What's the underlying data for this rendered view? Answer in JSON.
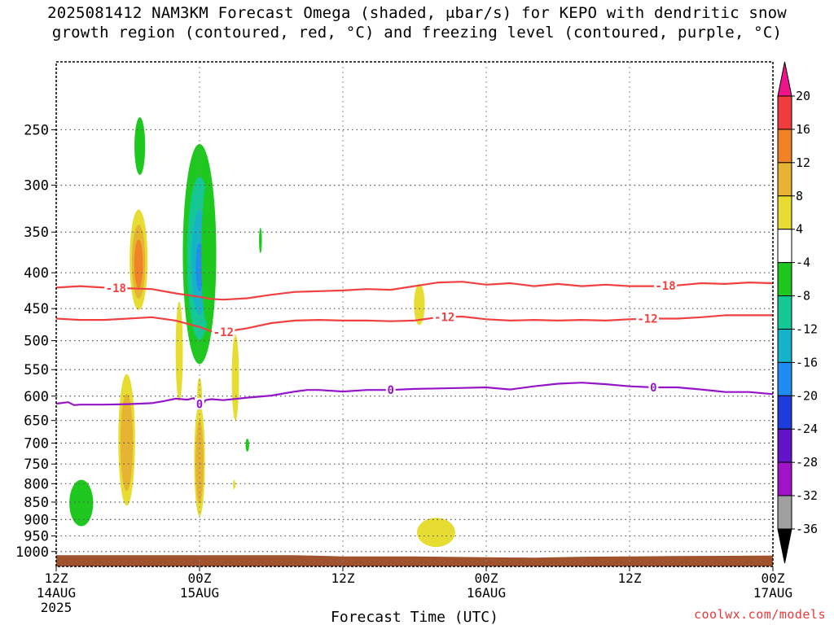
{
  "chart_data": {
    "type": "heatmap",
    "title_line1": "2025081412 NAM3KM Forecast Omega (shaded, μbar/s) for KEPO with dendritic snow",
    "title_line2": "growth region (contoured, red, °C) and freezing level (contoured, purple, °C)",
    "xlabel": "Forecast Time (UTC)",
    "x_unit": "hours",
    "xlim": [
      0,
      60
    ],
    "x_ticks": [
      {
        "x": 0,
        "label": "12Z",
        "sub": "14AUG",
        "sub2": "2025"
      },
      {
        "x": 12,
        "label": "00Z",
        "sub": "15AUG",
        "sub2": ""
      },
      {
        "x": 24,
        "label": "12Z",
        "sub": "",
        "sub2": ""
      },
      {
        "x": 36,
        "label": "00Z",
        "sub": "16AUG",
        "sub2": ""
      },
      {
        "x": 48,
        "label": "12Z",
        "sub": "",
        "sub2": ""
      },
      {
        "x": 60,
        "label": "00Z",
        "sub": "17AUG",
        "sub2": ""
      }
    ],
    "y_axis": "pressure (hPa), log scale, inverted",
    "ylim": [
      1050,
      200
    ],
    "y_ticks": [
      250,
      300,
      350,
      400,
      450,
      500,
      550,
      600,
      650,
      700,
      750,
      800,
      850,
      900,
      950,
      1000
    ],
    "grid": true,
    "colorbar": {
      "tick_labels": [
        "20",
        "16",
        "12",
        "8",
        "4",
        "-4",
        "-8",
        "-12",
        "-16",
        "-20",
        "-24",
        "-28",
        "-32",
        "-36"
      ],
      "bins_top_to_bottom": [
        {
          "range": [
            16,
            20
          ],
          "color": "#f03c3c"
        },
        {
          "range": [
            12,
            16
          ],
          "color": "#f08228"
        },
        {
          "range": [
            8,
            12
          ],
          "color": "#e6b432"
        },
        {
          "range": [
            4,
            8
          ],
          "color": "#e6dc32"
        },
        {
          "range": [
            -4,
            4
          ],
          "color": "#ffffff"
        },
        {
          "range": [
            -8,
            -4
          ],
          "color": "#1ec81e"
        },
        {
          "range": [
            -12,
            -8
          ],
          "color": "#14c896"
        },
        {
          "range": [
            -16,
            -12
          ],
          "color": "#14b4c8"
        },
        {
          "range": [
            -20,
            -16
          ],
          "color": "#1e8cf0"
        },
        {
          "range": [
            -24,
            -20
          ],
          "color": "#1e3cdc"
        },
        {
          "range": [
            -28,
            -24
          ],
          "color": "#6414c8"
        },
        {
          "range": [
            -32,
            -28
          ],
          "color": "#a014c8"
        },
        {
          "range": [
            -36,
            -32
          ],
          "color": "#a0a0a0"
        }
      ],
      "top_arrow_color": "#f0148c",
      "bottom_arrow_color": "#000000"
    },
    "contours": [
      {
        "label": "-18",
        "color": "#f04040",
        "label_x": [
          5,
          51
        ],
        "points": [
          [
            0,
            420
          ],
          [
            2,
            418
          ],
          [
            4,
            420
          ],
          [
            8,
            422
          ],
          [
            10,
            428
          ],
          [
            12,
            433
          ],
          [
            13,
            436
          ],
          [
            14,
            437
          ],
          [
            16,
            435
          ],
          [
            18,
            430
          ],
          [
            20,
            426
          ],
          [
            22,
            425
          ],
          [
            24,
            424
          ],
          [
            26,
            422
          ],
          [
            28,
            423
          ],
          [
            30,
            418
          ],
          [
            32,
            413
          ],
          [
            34,
            412
          ],
          [
            36,
            416
          ],
          [
            38,
            414
          ],
          [
            40,
            418
          ],
          [
            42,
            415
          ],
          [
            44,
            418
          ],
          [
            46,
            416
          ],
          [
            48,
            418
          ],
          [
            50,
            418
          ],
          [
            52,
            417
          ],
          [
            54,
            414
          ],
          [
            56,
            415
          ],
          [
            58,
            413
          ],
          [
            60,
            414
          ]
        ]
      },
      {
        "label": "-12",
        "color": "#f04040",
        "label_x": [
          14,
          32.5,
          49.5
        ],
        "points": [
          [
            0,
            465
          ],
          [
            2,
            467
          ],
          [
            4,
            467
          ],
          [
            6,
            465
          ],
          [
            8,
            463
          ],
          [
            10,
            468
          ],
          [
            12,
            478
          ],
          [
            13,
            485
          ],
          [
            14,
            486
          ],
          [
            16,
            480
          ],
          [
            18,
            472
          ],
          [
            20,
            468
          ],
          [
            22,
            467
          ],
          [
            24,
            468
          ],
          [
            26,
            468
          ],
          [
            28,
            469
          ],
          [
            30,
            468
          ],
          [
            32,
            463
          ],
          [
            34,
            462
          ],
          [
            36,
            466
          ],
          [
            38,
            468
          ],
          [
            40,
            467
          ],
          [
            42,
            468
          ],
          [
            44,
            467
          ],
          [
            46,
            468
          ],
          [
            48,
            466
          ],
          [
            50,
            465
          ],
          [
            52,
            465
          ],
          [
            54,
            463
          ],
          [
            56,
            460
          ],
          [
            58,
            460
          ],
          [
            60,
            460
          ]
        ]
      },
      {
        "label": "0",
        "color": "#9614c8",
        "label_x": [
          12,
          28,
          50
        ],
        "points": [
          [
            0,
            615
          ],
          [
            1,
            612
          ],
          [
            1.5,
            618
          ],
          [
            2,
            617
          ],
          [
            4,
            617
          ],
          [
            6,
            616
          ],
          [
            8,
            614
          ],
          [
            9,
            610
          ],
          [
            10,
            605
          ],
          [
            11,
            607
          ],
          [
            11.5,
            604
          ],
          [
            12.2,
            620
          ],
          [
            12.5,
            608
          ],
          [
            13,
            606
          ],
          [
            14,
            608
          ],
          [
            16,
            603
          ],
          [
            18,
            599
          ],
          [
            20,
            591
          ],
          [
            21,
            588
          ],
          [
            22,
            588
          ],
          [
            24,
            591
          ],
          [
            26,
            588
          ],
          [
            28,
            588
          ],
          [
            30,
            586
          ],
          [
            32,
            585
          ],
          [
            34,
            584
          ],
          [
            36,
            583
          ],
          [
            38,
            587
          ],
          [
            40,
            581
          ],
          [
            42,
            576
          ],
          [
            44,
            574
          ],
          [
            46,
            577
          ],
          [
            48,
            581
          ],
          [
            50,
            583
          ],
          [
            52,
            583
          ],
          [
            54,
            587
          ],
          [
            56,
            592
          ],
          [
            58,
            592
          ],
          [
            60,
            596
          ]
        ]
      }
    ],
    "omega_features": [
      {
        "cx": 7.0,
        "p0": 240,
        "p1": 290,
        "hw": 0.45,
        "levels": [
          "#1ec81e"
        ]
      },
      {
        "cx": 6.9,
        "p0": 325,
        "p1": 452,
        "hw": 0.75,
        "levels": [
          "#e6dc32",
          "#e6b432",
          "#f08228"
        ]
      },
      {
        "cx": 12.0,
        "p0": 262,
        "p1": 540,
        "hw": 1.4,
        "levels": [
          "#1ec81e",
          "#14c896",
          "#14b4c8",
          "#1e8cf0"
        ]
      },
      {
        "cx": 12.6,
        "p0": 300,
        "p1": 470,
        "hw": 0.45,
        "levels": [
          "#1ec81e"
        ]
      },
      {
        "cx": 10.3,
        "p0": 440,
        "p1": 610,
        "hw": 0.3,
        "levels": [
          "#e6dc32"
        ]
      },
      {
        "cx": 12.0,
        "p0": 565,
        "p1": 630,
        "hw": 0.2,
        "levels": [
          "#e6dc32"
        ]
      },
      {
        "cx": 15.0,
        "p0": 490,
        "p1": 650,
        "hw": 0.3,
        "levels": [
          "#e6dc32"
        ]
      },
      {
        "cx": 17.1,
        "p0": 345,
        "p1": 375,
        "hw": 0.12,
        "levels": [
          "#1ec81e"
        ]
      },
      {
        "cx": 5.9,
        "p0": 558,
        "p1": 860,
        "hw": 0.7,
        "levels": [
          "#e6dc32",
          "#e6b432"
        ]
      },
      {
        "cx": 12.0,
        "p0": 615,
        "p1": 890,
        "hw": 0.45,
        "levels": [
          "#e6dc32",
          "#e6b432"
        ]
      },
      {
        "cx": 16.0,
        "p0": 690,
        "p1": 720,
        "hw": 0.15,
        "levels": [
          "#1ec81e"
        ]
      },
      {
        "cx": 14.9,
        "p0": 790,
        "p1": 815,
        "hw": 0.1,
        "levels": [
          "#e6dc32"
        ]
      },
      {
        "cx": 2.1,
        "p0": 790,
        "p1": 920,
        "hw": 1.0,
        "levels": [
          "#1ec81e"
        ]
      },
      {
        "cx": 30.4,
        "p0": 415,
        "p1": 475,
        "hw": 0.45,
        "levels": [
          "#e6dc32"
        ]
      },
      {
        "cx": 31.8,
        "p0": 895,
        "p1": 985,
        "hw": 1.6,
        "levels": [
          "#e6dc32"
        ]
      }
    ],
    "surface": {
      "color": "#a0522d",
      "points": [
        [
          0,
          1012
        ],
        [
          20,
          1012
        ],
        [
          24,
          1016
        ],
        [
          30,
          1016
        ],
        [
          36,
          1019
        ],
        [
          40,
          1020
        ],
        [
          44,
          1017
        ],
        [
          48,
          1016
        ],
        [
          52,
          1015
        ],
        [
          56,
          1014
        ],
        [
          60,
          1013
        ]
      ]
    }
  },
  "credit": "coolwx.com/models"
}
